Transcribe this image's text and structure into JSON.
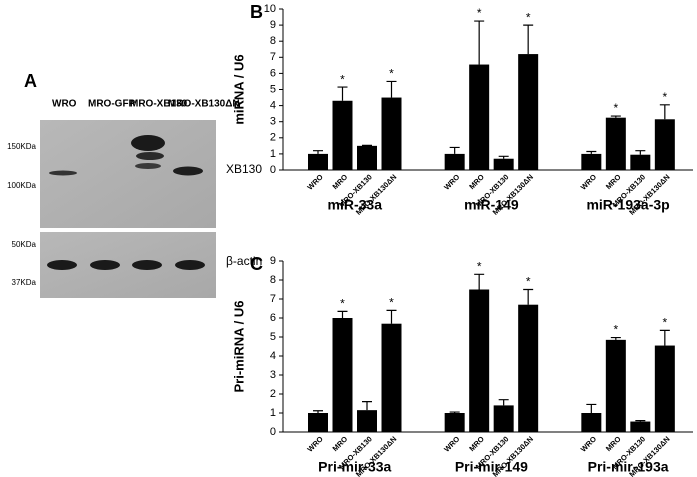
{
  "blot": {
    "panel_label": "A",
    "lanes": [
      "WRO",
      "MRO-GFP",
      "MRO-XB130",
      "MRO-XB130ΔN"
    ],
    "top_markers": [
      "150KDa",
      "100KDa"
    ],
    "bottom_markers": [
      "50KDa",
      "37KDa"
    ],
    "top_protein": "XB130",
    "bottom_protein": "β-actin"
  },
  "chart_data": [
    {
      "type": "bar",
      "panel_label": "B",
      "ylabel": "miRNA / U6",
      "color": "#000000",
      "categories": [
        "WRO",
        "MRO",
        "MRO-XB130",
        "MRO-XB130ΔN",
        "WRO",
        "MRO",
        "MRO-XB130",
        "MRO-XB130ΔN",
        "WRO",
        "MRO",
        "MRO-XB130",
        "MRO-XB130ΔN"
      ],
      "groups": [
        "miR-33a",
        "miR-149",
        "miR-193a-3p"
      ],
      "values": [
        1.0,
        4.3,
        1.5,
        4.5,
        1.0,
        6.55,
        0.7,
        7.2,
        1.0,
        3.25,
        0.95,
        3.15
      ],
      "errors": [
        0.2,
        0.85,
        0.03,
        1.0,
        0.4,
        2.7,
        0.15,
        1.8,
        0.15,
        0.1,
        0.25,
        0.9
      ],
      "significance": [
        null,
        "*",
        null,
        "*",
        null,
        "*",
        null,
        "*",
        null,
        "*",
        null,
        "*"
      ],
      "ylim": [
        0,
        10
      ],
      "yticks": [
        0,
        1,
        2,
        3,
        4,
        5,
        6,
        7,
        8,
        9,
        10
      ]
    },
    {
      "type": "bar",
      "panel_label": "C",
      "ylabel": "Pri-miRNA / U6",
      "color": "#000000",
      "categories": [
        "WRO",
        "MRO",
        "MRO-XB130",
        "MRO-XB130ΔN",
        "WRO",
        "MRO",
        "MRO-XB130",
        "MRO-XB130ΔN",
        "WRO",
        "MRO",
        "MRO-XB130",
        "MRO-XB130ΔN"
      ],
      "groups": [
        "Pri-mir-33a",
        "Pri-mir-149",
        "Pri-mir-193a"
      ],
      "values": [
        1.0,
        6.0,
        1.15,
        5.7,
        1.0,
        7.5,
        1.4,
        6.7,
        1.0,
        4.85,
        0.55,
        4.55
      ],
      "errors": [
        0.12,
        0.35,
        0.45,
        0.7,
        0.05,
        0.8,
        0.3,
        0.8,
        0.45,
        0.12,
        0.05,
        0.8
      ],
      "significance": [
        null,
        "*",
        null,
        "*",
        null,
        "*",
        null,
        "*",
        null,
        "*",
        null,
        "*"
      ],
      "ylim": [
        0,
        9
      ],
      "yticks": [
        0,
        1,
        2,
        3,
        4,
        5,
        6,
        7,
        8,
        9
      ]
    }
  ]
}
